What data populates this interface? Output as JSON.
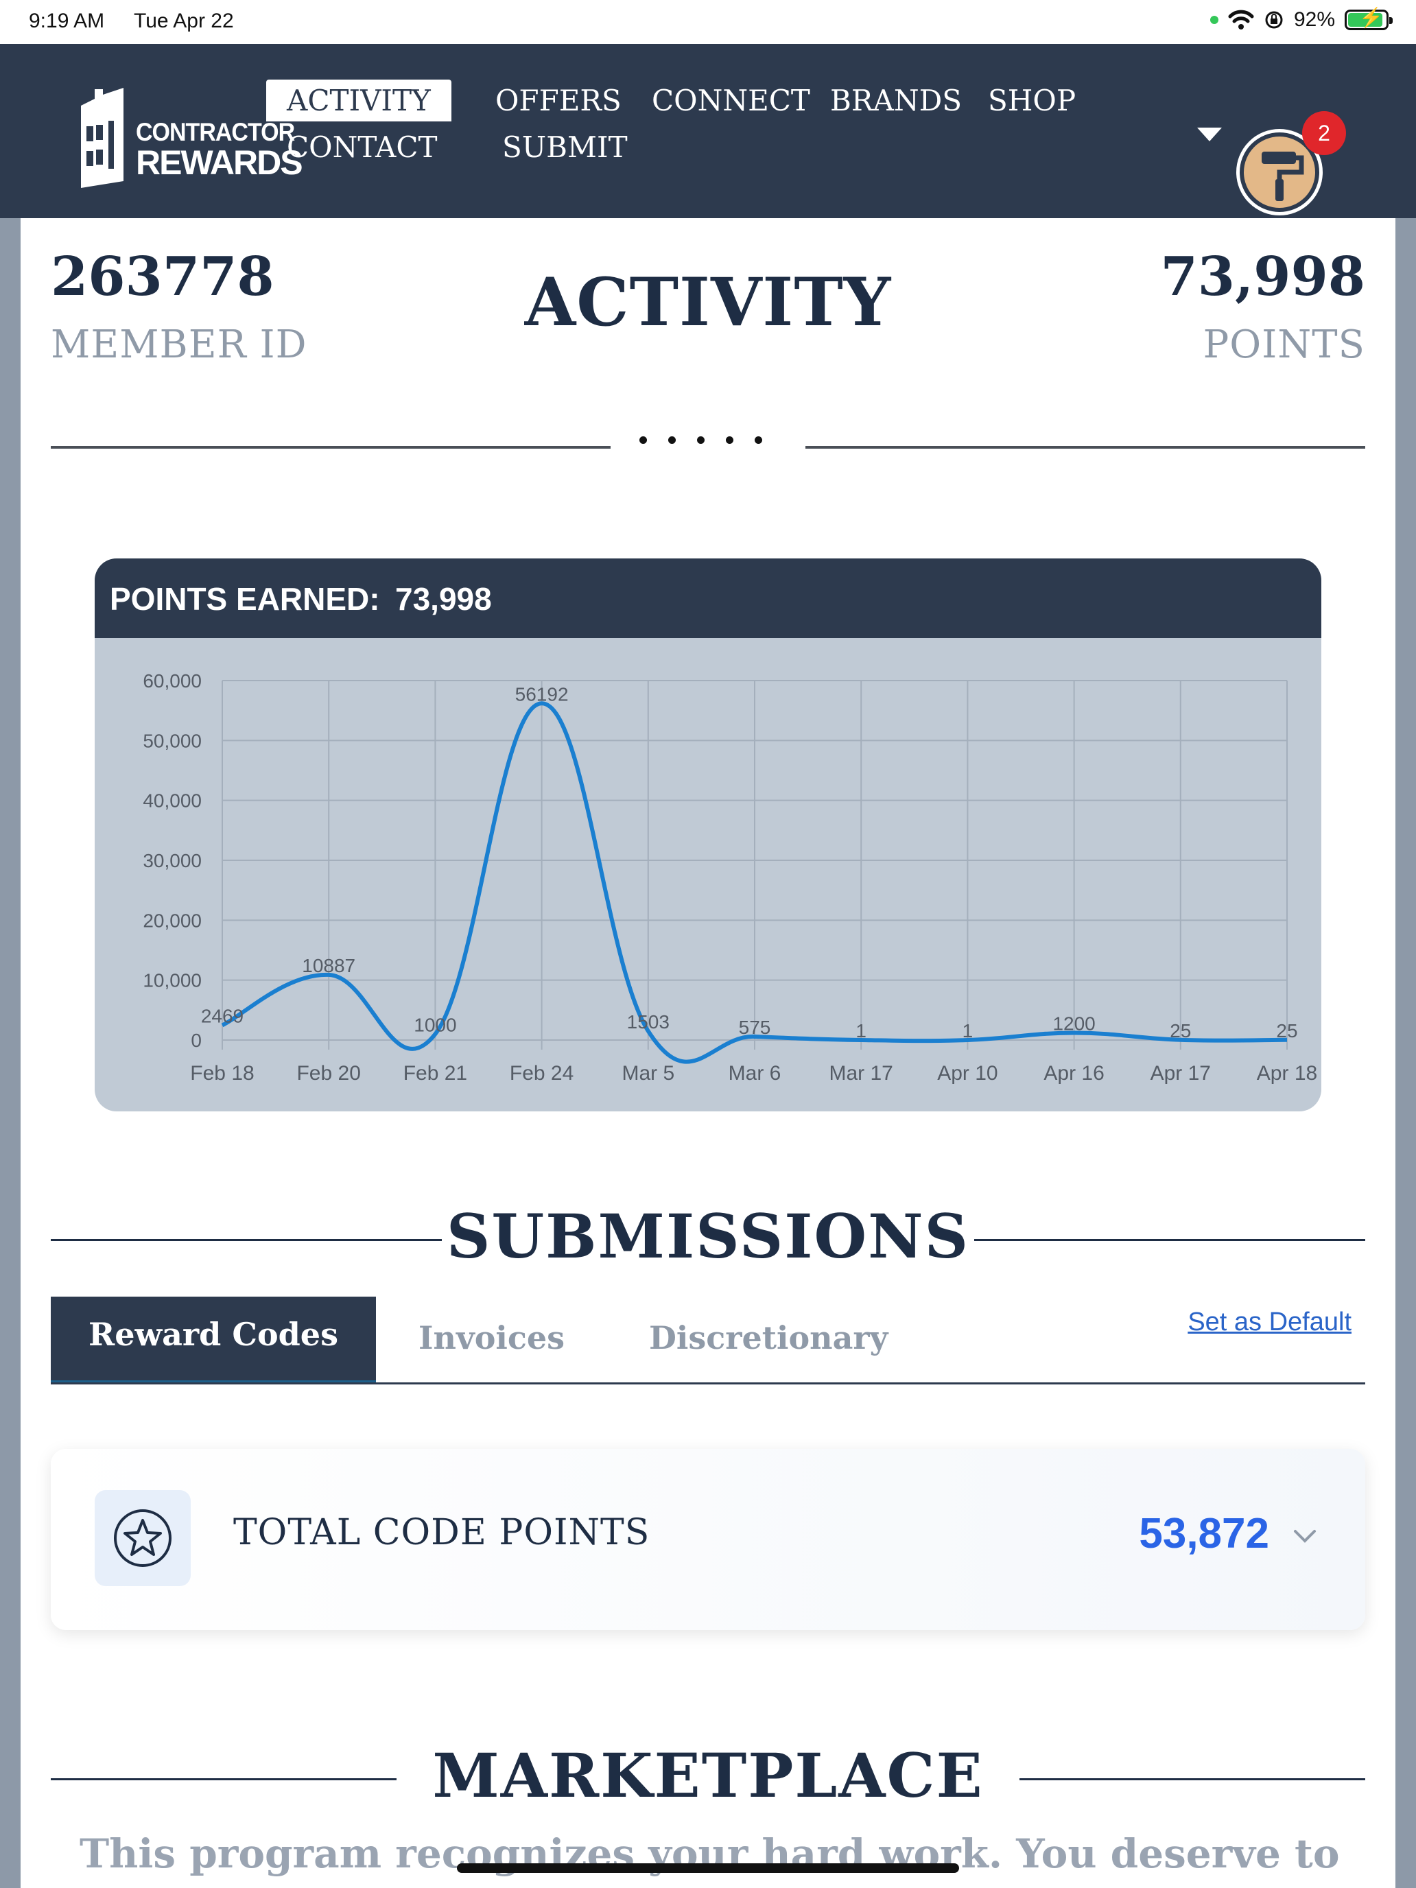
{
  "status_bar": {
    "time": "9:19 AM",
    "date": "Tue Apr 22",
    "battery": "92%",
    "battery_level": 0.92
  },
  "header": {
    "logo_line1": "CONTRACTOR",
    "logo_line2": "REWARDS",
    "nav": [
      {
        "label": "ACTIVITY",
        "active": true
      },
      {
        "label": "OFFERS"
      },
      {
        "label": "CONNECT"
      },
      {
        "label": "BRANDS"
      },
      {
        "label": "SHOP"
      },
      {
        "label": "CONTACT"
      },
      {
        "label": "SUBMIT"
      }
    ],
    "notification_count": "2",
    "avatar_icon": "paint-roller-icon"
  },
  "summary": {
    "member_id_value": "263778",
    "member_id_label": "MEMBER ID",
    "title": "ACTIVITY",
    "points_value": "73,998",
    "points_label": "POINTS"
  },
  "chart_card": {
    "header_label": "POINTS EARNED:",
    "header_value": "73,998"
  },
  "chart_data": {
    "type": "line",
    "categories": [
      "Feb 18",
      "Feb 20",
      "Feb 21",
      "Feb 24",
      "Mar 5",
      "Mar 6",
      "Mar 17",
      "Apr 10",
      "Apr 16",
      "Apr 17",
      "Apr 18"
    ],
    "values": [
      2469,
      10887,
      1000,
      56192,
      1503,
      575,
      1,
      1,
      1200,
      25,
      25
    ],
    "data_labels": [
      "2469",
      "10887",
      "1000",
      "56192",
      "1503",
      "575",
      "1",
      "1",
      "1200",
      "25",
      "25"
    ],
    "y_ticks": [
      "0",
      "10,000",
      "20,000",
      "30,000",
      "40,000",
      "50,000",
      "60,000"
    ],
    "ylim": [
      0,
      60000
    ],
    "grid": true,
    "line_color": "#1a7fd0"
  },
  "submissions": {
    "title": "SUBMISSIONS",
    "tabs": [
      {
        "label": "Reward Codes",
        "active": true
      },
      {
        "label": "Invoices"
      },
      {
        "label": "Discretionary"
      }
    ],
    "set_default": "Set as Default",
    "total_label": "TOTAL CODE POINTS",
    "total_value": "53,872",
    "total_icon": "star-icon"
  },
  "marketplace": {
    "title": "MARKETPLACE",
    "text": "This program recognizes your hard work. You deserve to"
  }
}
